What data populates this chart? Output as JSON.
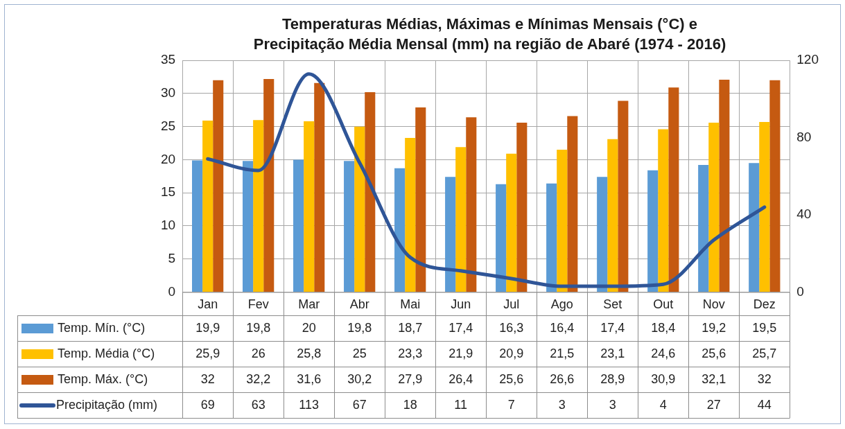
{
  "chart_data": {
    "type": "bar",
    "title": "Temperaturas Médias, Máximas e Mínimas Mensais (°C) e Precipitação Média Mensal (mm) na região de Abaré (1974 - 2016)",
    "categories": [
      "Jan",
      "Fev",
      "Mar",
      "Abr",
      "Mai",
      "Jun",
      "Jul",
      "Ago",
      "Set",
      "Out",
      "Nov",
      "Dez"
    ],
    "series": [
      {
        "name": "Temp. Mín. (°C)",
        "color": "#5b9bd5",
        "values": [
          19.9,
          19.8,
          20,
          19.8,
          18.7,
          17.4,
          16.3,
          16.4,
          17.4,
          18.4,
          19.2,
          19.5
        ],
        "value_labels": [
          "19,9",
          "19,8",
          "20",
          "19,8",
          "18,7",
          "17,4",
          "16,3",
          "16,4",
          "17,4",
          "18,4",
          "19,2",
          "19,5"
        ]
      },
      {
        "name": "Temp. Média (°C)",
        "color": "#ffc000",
        "values": [
          25.9,
          26,
          25.8,
          25,
          23.3,
          21.9,
          20.9,
          21.5,
          23.1,
          24.6,
          25.6,
          25.7
        ],
        "value_labels": [
          "25,9",
          "26",
          "25,8",
          "25",
          "23,3",
          "21,9",
          "20,9",
          "21,5",
          "23,1",
          "24,6",
          "25,6",
          "25,7"
        ]
      },
      {
        "name": "Temp. Máx. (°C)",
        "color": "#c55a11",
        "values": [
          32,
          32.2,
          31.6,
          30.2,
          27.9,
          26.4,
          25.6,
          26.6,
          28.9,
          30.9,
          32.1,
          32
        ],
        "value_labels": [
          "32",
          "32,2",
          "31,6",
          "30,2",
          "27,9",
          "26,4",
          "25,6",
          "26,6",
          "28,9",
          "30,9",
          "32,1",
          "32"
        ]
      },
      {
        "name": "Precipitação (mm)",
        "type": "line",
        "axis": "y2",
        "color": "#2f5597",
        "values": [
          69,
          63,
          113,
          67,
          18,
          11,
          7,
          3,
          3,
          4,
          27,
          44
        ],
        "value_labels": [
          "69",
          "63",
          "113",
          "67",
          "18",
          "11",
          "7",
          "3",
          "3",
          "4",
          "27",
          "44"
        ]
      }
    ],
    "ylim": [
      0,
      35
    ],
    "yticks": [
      0,
      5,
      10,
      15,
      20,
      25,
      30,
      35
    ],
    "y2lim": [
      0,
      120
    ],
    "y2ticks": [
      0,
      40,
      80,
      120
    ],
    "grid": true,
    "legend": "bottom",
    "marker": "none",
    "line_style": "solid"
  }
}
